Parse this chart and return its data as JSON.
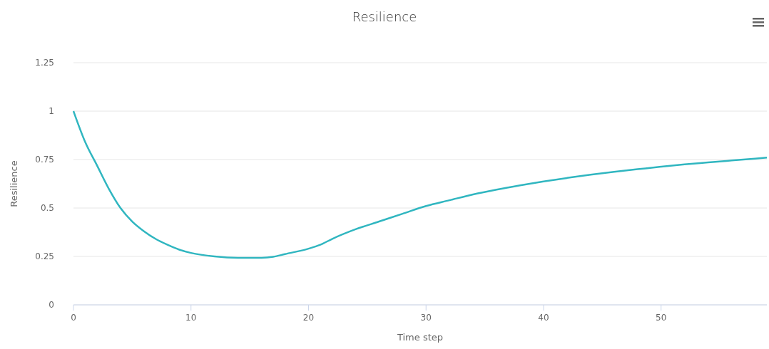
{
  "chart_data": {
    "type": "line",
    "title": "Resilience",
    "xlabel": "Time step",
    "ylabel": "Resilience",
    "x": [
      0,
      1,
      2,
      3,
      4,
      5,
      6,
      7,
      8,
      9,
      10,
      12,
      14,
      16,
      17,
      18,
      20,
      21,
      22,
      24,
      26,
      28,
      30,
      32,
      34,
      36,
      38,
      40,
      42,
      44,
      46,
      48,
      50,
      52,
      54,
      56,
      58,
      59
    ],
    "series": [
      {
        "color": "#30b6c0",
        "values": [
          1.0,
          0.84,
          0.72,
          0.6,
          0.5,
          0.43,
          0.38,
          0.34,
          0.31,
          0.285,
          0.268,
          0.25,
          0.243,
          0.243,
          0.248,
          0.262,
          0.29,
          0.31,
          0.34,
          0.39,
          0.43,
          0.47,
          0.51,
          0.54,
          0.57,
          0.595,
          0.617,
          0.637,
          0.655,
          0.672,
          0.687,
          0.7,
          0.713,
          0.725,
          0.735,
          0.745,
          0.755,
          0.76
        ]
      }
    ],
    "xlim": [
      0,
      59
    ],
    "xticks": [
      0,
      10,
      20,
      30,
      40,
      50
    ],
    "ylim": [
      0,
      1.25
    ],
    "yticks": [
      0,
      {
        "value": 0.25,
        "label": "0.25"
      },
      {
        "value": 0.5,
        "label": "0.5"
      },
      {
        "value": 0.75,
        "label": "0.75"
      },
      1,
      {
        "value": 1.25,
        "label": "1.25"
      }
    ],
    "grid": "y",
    "marker": "none",
    "line_style": "solid"
  }
}
